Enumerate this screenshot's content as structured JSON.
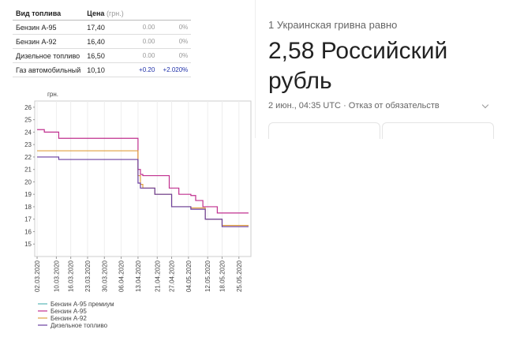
{
  "table": {
    "header": [
      "Вид топлива",
      "Цена",
      "(грн.)"
    ],
    "rows": [
      [
        "Бензин А-95",
        "17,40",
        "0.00",
        "0%"
      ],
      [
        "Бензин А-92",
        "16,40",
        "0.00",
        "0%"
      ],
      [
        "Дизельное топливо",
        "16,50",
        "0.00",
        "0%"
      ],
      [
        "Газ автомобильный",
        "10,10",
        "+0.20",
        "+2.020%"
      ]
    ]
  },
  "currency_widget": {
    "heading": "1 Украинская гривна равно",
    "result": "2,58 Российский рубль",
    "timestamp": "2 июн., 04:35 UTC",
    "disclaimer": "Отказ от обязательств"
  },
  "chart_data": {
    "type": "line",
    "y_label": "грн.",
    "x": [
      "02.03.2020",
      "05.03.2020",
      "11.03.2020",
      "12.04.2020",
      "13.04.2020",
      "14.04.2020",
      "15.04.2020",
      "20.04.2020",
      "26.04.2020",
      "27.04.2020",
      "30.04.2020",
      "05.05.2020",
      "07.05.2020",
      "10.05.2020",
      "11.05.2020",
      "16.05.2020",
      "18.05.2020",
      "29.05.2020"
    ],
    "series": [
      {
        "name": "Бензин А-95 премиум",
        "color": "#5bb8b8",
        "values": [
          null,
          null,
          null,
          null,
          null,
          null,
          null,
          null,
          null,
          null,
          null,
          null,
          null,
          null,
          null,
          null,
          null,
          null
        ]
      },
      {
        "name": "Бензин А-95",
        "color": "#c0308f",
        "values": [
          24.2,
          24.0,
          23.5,
          23.5,
          21.0,
          20.6,
          20.5,
          20.5,
          19.5,
          19.5,
          19.0,
          18.9,
          18.5,
          18.0,
          18.0,
          17.5,
          17.5,
          17.5
        ]
      },
      {
        "name": "Бензин А-92",
        "color": "#e0a040",
        "values": [
          22.5,
          22.5,
          22.5,
          22.5,
          20.5,
          19.8,
          19.5,
          19.0,
          19.0,
          18.0,
          18.0,
          17.9,
          17.9,
          17.9,
          17.0,
          17.0,
          16.5,
          16.5
        ]
      },
      {
        "name": "Дизельное топливо",
        "color": "#6a3fa0",
        "values": [
          22.0,
          22.0,
          21.8,
          21.8,
          19.9,
          19.5,
          19.5,
          19.0,
          19.0,
          18.0,
          18.0,
          17.8,
          17.8,
          17.8,
          17.0,
          17.0,
          16.4,
          16.4
        ]
      }
    ],
    "xlim": [
      "01.03.2020",
      "30.05.2020"
    ],
    "xticks": [
      "02.03.2020",
      "10.03.2020",
      "16.03.2020",
      "23.03.2020",
      "30.03.2020",
      "06.04.2020",
      "13.04.2020",
      "21.04.2020",
      "27.04.2020",
      "04.05.2020",
      "12.05.2020",
      "18.05.2020",
      "25.05.2020"
    ],
    "ylim": [
      14,
      26.5
    ],
    "yticks": [
      15,
      16,
      17,
      18,
      19,
      20,
      21,
      22,
      23,
      24,
      25,
      26
    ],
    "grid": true,
    "step": true
  }
}
